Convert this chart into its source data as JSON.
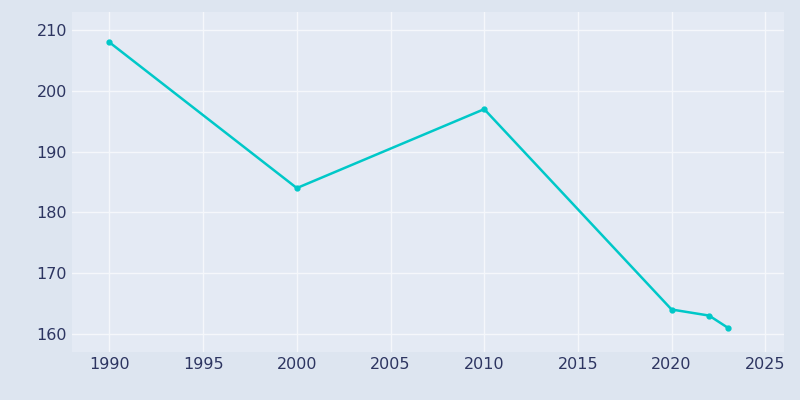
{
  "years": [
    1990,
    2000,
    2010,
    2020,
    2022,
    2023
  ],
  "population": [
    208,
    184,
    197,
    164,
    163,
    161
  ],
  "line_color": "#00c8c8",
  "marker": "o",
  "marker_size": 3.5,
  "background_color": "#dde5f0",
  "plot_bg_color": "#e4eaf4",
  "grid_color": "#f5f7fb",
  "line_width": 1.8,
  "xlim": [
    1988,
    2026
  ],
  "ylim": [
    157,
    213
  ],
  "xticks": [
    1990,
    1995,
    2000,
    2005,
    2010,
    2015,
    2020,
    2025
  ],
  "yticks": [
    160,
    170,
    180,
    190,
    200,
    210
  ],
  "tick_color": "#2d3561",
  "tick_fontsize": 11.5
}
